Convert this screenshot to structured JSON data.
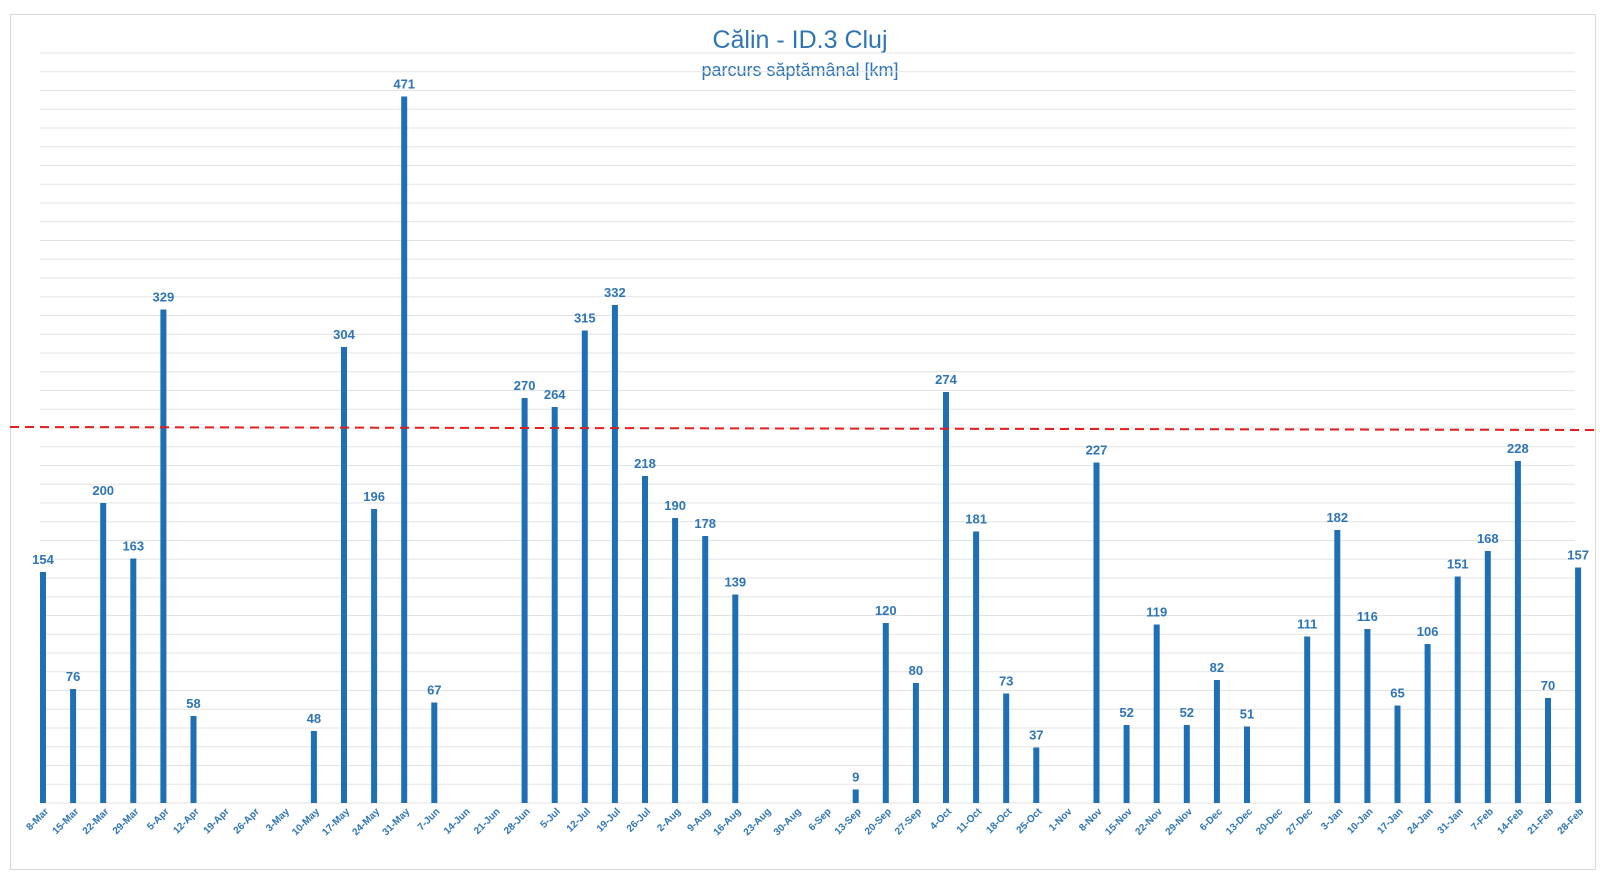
{
  "chart_data": {
    "type": "bar",
    "title": "Călin - ID.3 Cluj",
    "subtitle": "parcurs săptămânal [km]",
    "xlabel": "",
    "ylabel": "",
    "ylim": [
      0,
      500
    ],
    "grid": true,
    "reference_line": {
      "value": 250,
      "style": "dashed",
      "color": "#e02020"
    },
    "categories": [
      "8-Mar",
      "15-Mar",
      "22-Mar",
      "29-Mar",
      "5-Apr",
      "12-Apr",
      "19-Apr",
      "26-Apr",
      "3-May",
      "10-May",
      "17-May",
      "24-May",
      "31-May",
      "7-Jun",
      "14-Jun",
      "21-Jun",
      "28-Jun",
      "5-Jul",
      "12-Jul",
      "19-Jul",
      "26-Jul",
      "2-Aug",
      "9-Aug",
      "16-Aug",
      "23-Aug",
      "30-Aug",
      "6-Sep",
      "13-Sep",
      "20-Sep",
      "27-Sep",
      "4-Oct",
      "11-Oct",
      "18-Oct",
      "25-Oct",
      "1-Nov",
      "8-Nov",
      "15-Nov",
      "22-Nov",
      "29-Nov",
      "6-Dec",
      "13-Dec",
      "20-Dec",
      "27-Dec",
      "3-Jan",
      "10-Jan",
      "17-Jan",
      "24-Jan",
      "31-Jan",
      "7-Feb",
      "14-Feb",
      "21-Feb",
      "28-Feb"
    ],
    "values": [
      154,
      76,
      200,
      163,
      329,
      58,
      null,
      null,
      null,
      48,
      304,
      196,
      471,
      67,
      null,
      null,
      270,
      264,
      315,
      332,
      218,
      190,
      178,
      139,
      null,
      null,
      null,
      9,
      120,
      80,
      274,
      181,
      73,
      37,
      null,
      227,
      52,
      119,
      52,
      82,
      51,
      null,
      111,
      182,
      116,
      65,
      106,
      151,
      168,
      228,
      70,
      157
    ],
    "colors": {
      "bar": "#1f6fb5",
      "label": "#2e75b6",
      "grid": "#e3e3e3"
    }
  }
}
